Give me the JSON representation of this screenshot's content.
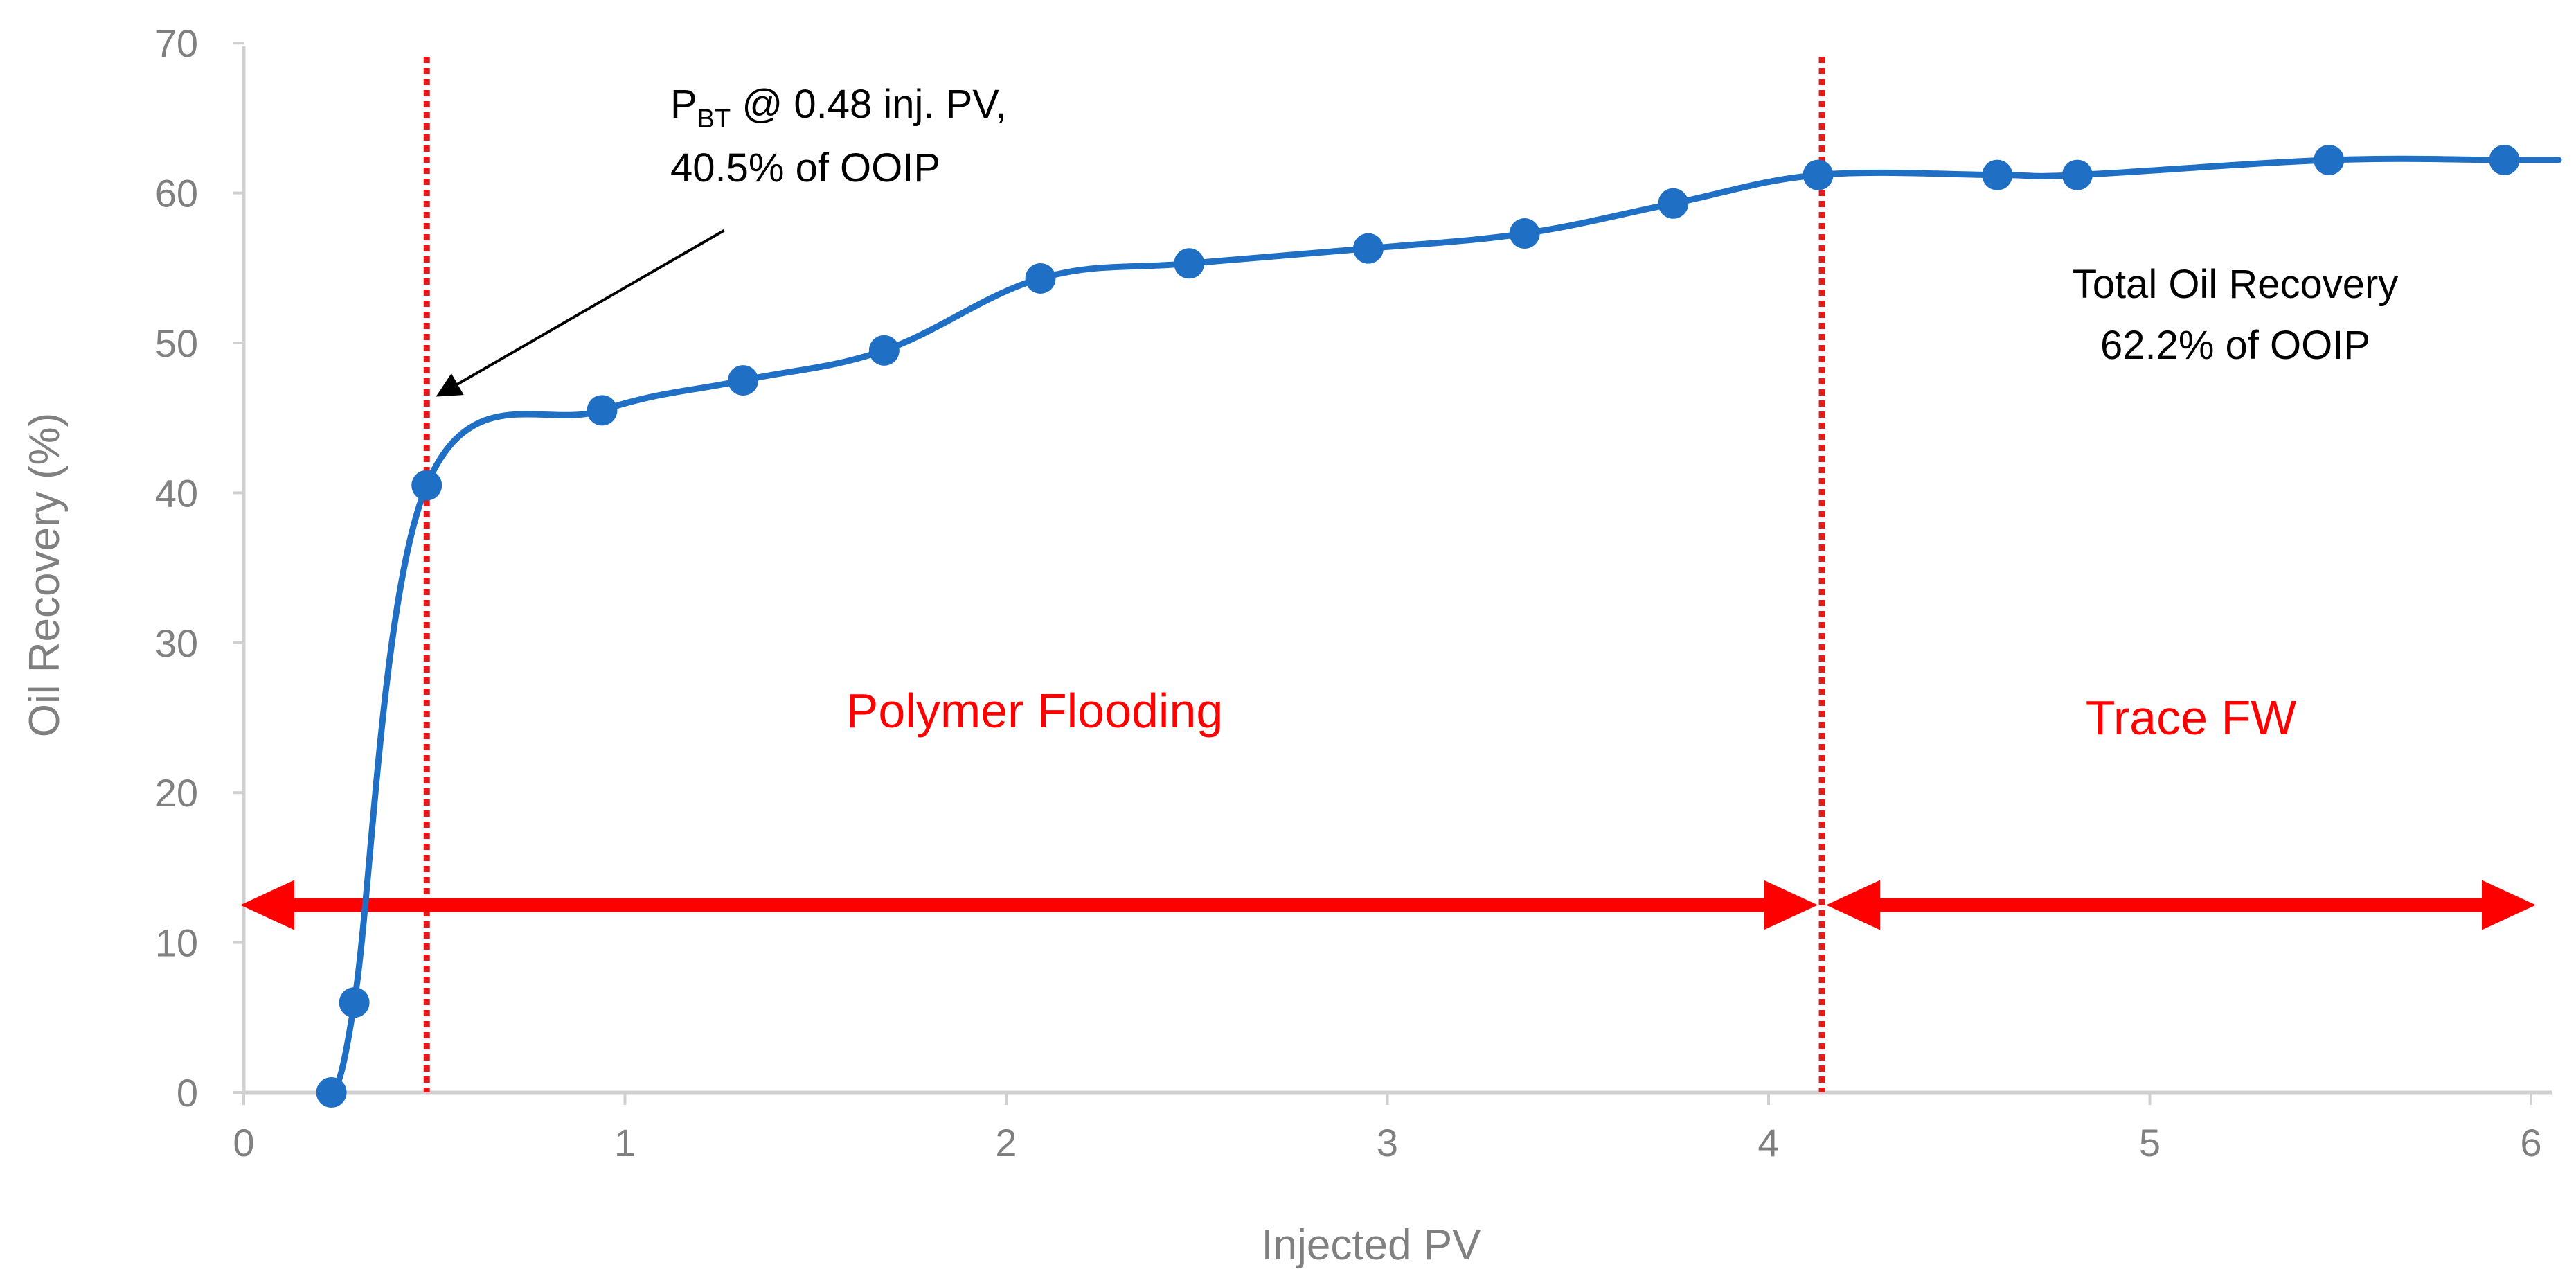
{
  "chart_data": {
    "type": "line",
    "title": "",
    "xlabel": "Injected PV",
    "ylabel": "Oil Recovery (%)",
    "xlim": [
      0,
      6
    ],
    "ylim": [
      0,
      70
    ],
    "x_ticks": [
      0,
      1,
      2,
      3,
      4,
      5,
      6
    ],
    "y_ticks": [
      0,
      10,
      20,
      30,
      40,
      50,
      60,
      70
    ],
    "grid": false,
    "series": [
      {
        "name": "Oil Recovery",
        "color": "#1f6fc5",
        "marker": "circle",
        "x": [
          0.23,
          0.29,
          0.48,
          0.94,
          1.31,
          1.68,
          2.09,
          2.48,
          2.95,
          3.36,
          3.75,
          4.13,
          4.6,
          4.81,
          5.47,
          5.93
        ],
        "y": [
          0,
          6,
          40.5,
          45.5,
          47.5,
          49.5,
          54.3,
          55.3,
          56.3,
          57.3,
          59.3,
          61.2,
          61.2,
          61.2,
          62.2,
          62.2
        ]
      }
    ],
    "reference_lines": [
      {
        "x": 0.48,
        "color": "#e31a1c",
        "style": "dotted"
      },
      {
        "x": 4.14,
        "color": "#e31a1c",
        "style": "dotted"
      }
    ],
    "range_arrows": [
      {
        "from_x": 0,
        "to_x": 4.14,
        "y": 12.5,
        "color": "#ff0000"
      },
      {
        "from_x": 4.14,
        "to_x": 6.05,
        "y": 12.5,
        "color": "#ff0000"
      }
    ],
    "annotations": {
      "breakthrough": {
        "p": "P",
        "sub": "BT",
        "line1_rest": " @ 0.48 inj. PV,",
        "line2": "40.5% of OOIP",
        "arrow_from": {
          "x": 1.26,
          "y": 57.5
        },
        "arrow_to": {
          "x": 0.51,
          "y": 46.5
        }
      },
      "total_recovery": {
        "line1": "Total Oil Recovery",
        "line2": "62.2% of OOIP"
      },
      "region_polymer": "Polymer Flooding",
      "region_trace": "Trace FW"
    }
  }
}
